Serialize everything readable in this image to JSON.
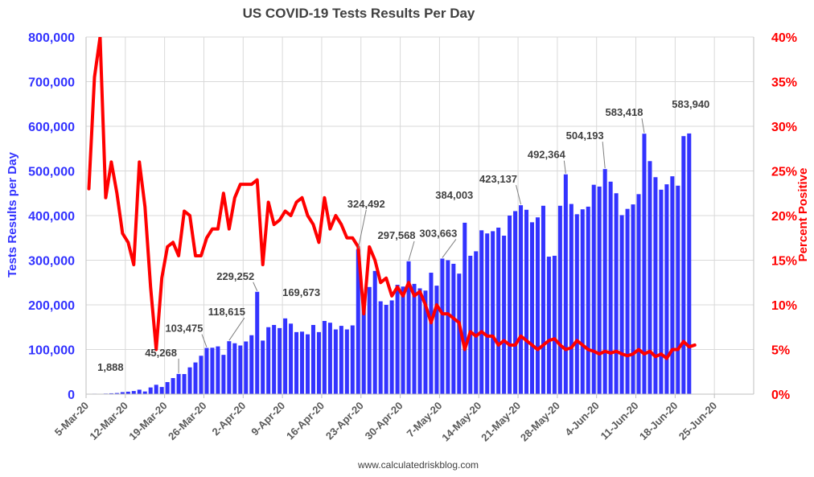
{
  "chart_data": {
    "type": "bar",
    "title": "US COVID-19 Tests Results Per Day",
    "source": "www.calculatedriskblog.com",
    "ylabel_left": "Tests Results per Day",
    "ylabel_right": "Percent Positive",
    "ylim_left": [
      0,
      800000
    ],
    "ylim_right": [
      0,
      40
    ],
    "yticks_left": [
      "0",
      "100,000",
      "200,000",
      "300,000",
      "400,000",
      "500,000",
      "600,000",
      "700,000",
      "800,000"
    ],
    "yticks_right": [
      "0%",
      "5%",
      "10%",
      "15%",
      "20%",
      "25%",
      "30%",
      "35%",
      "40%"
    ],
    "x_start_date": "2020-03-05",
    "xticks": [
      "5-Mar-20",
      "12-Mar-20",
      "19-Mar-20",
      "26-Mar-20",
      "2-Apr-20",
      "9-Apr-20",
      "16-Apr-20",
      "23-Apr-20",
      "30-Apr-20",
      "7-May-20",
      "14-May-20",
      "21-May-20",
      "28-May-20",
      "4-Jun-20",
      "11-Jun-20",
      "18-Jun-20",
      "25-Jun-20"
    ],
    "grid": true,
    "colors": {
      "bars": "#3333ff",
      "line": "#ff0000",
      "left_axis": "#3333ff",
      "right_axis": "#ff0000"
    },
    "series": [
      {
        "name": "Tests Results per Day",
        "type": "bar",
        "axis": "left",
        "values": [
          600,
          1000,
          900,
          1300,
          1888,
          2500,
          4500,
          5500,
          7000,
          10000,
          6000,
          15000,
          21000,
          16000,
          27000,
          36000,
          45268,
          45000,
          60000,
          71000,
          86000,
          103475,
          104000,
          107000,
          88000,
          118615,
          114000,
          109000,
          118000,
          132000,
          229252,
          120000,
          150000,
          155000,
          148000,
          169673,
          158000,
          139000,
          140000,
          134000,
          155000,
          139000,
          164000,
          160000,
          145000,
          153000,
          145000,
          154000,
          324492,
          195000,
          240000,
          276000,
          208000,
          200000,
          210000,
          245000,
          241000,
          297568,
          247000,
          237000,
          232000,
          272000,
          243000,
          303663,
          300000,
          292000,
          270000,
          384003,
          310000,
          320000,
          367000,
          360000,
          365000,
          373000,
          355000,
          400000,
          410000,
          423137,
          413000,
          385000,
          396000,
          422000,
          308000,
          310000,
          422000,
          492364,
          426000,
          403000,
          414000,
          420000,
          469000,
          465000,
          504193,
          476000,
          450000,
          401000,
          415000,
          425000,
          448000,
          583418,
          522000,
          486000,
          458000,
          470000,
          488000,
          467000,
          578000,
          583940
        ]
      },
      {
        "name": "Percent Positive",
        "type": "line",
        "axis": "right",
        "values": [
          23,
          35.5,
          40,
          22,
          26,
          22.5,
          18,
          17,
          14.5,
          26,
          21,
          12,
          5,
          13,
          16.5,
          17,
          15.5,
          20.5,
          20,
          15.5,
          15.5,
          17.5,
          18.5,
          18.5,
          22.5,
          18.5,
          22,
          23.5,
          23.5,
          23.5,
          24,
          14.5,
          21.5,
          19,
          19.5,
          20.5,
          20,
          21.5,
          22,
          20,
          19,
          17,
          22,
          18.5,
          20,
          19,
          17.5,
          17.5,
          16.5,
          9,
          16.5,
          15,
          12.5,
          13,
          11,
          12,
          11,
          12.5,
          11,
          11.5,
          10,
          8,
          10,
          9,
          9,
          8.5,
          8,
          5,
          7,
          6.5,
          7,
          6.5,
          6.5,
          5.5,
          6,
          5.5,
          5.5,
          6.5,
          6,
          5.5,
          5,
          5.5,
          6,
          6.2,
          5.5,
          5,
          5.2,
          6,
          5.5,
          5,
          4.8,
          4.5,
          4.8,
          4.6,
          4.8,
          4.5,
          4.3,
          4.5,
          5,
          4.5,
          4.8,
          4.2,
          4.5,
          4,
          5,
          5,
          5.9,
          5.3,
          5.5
        ]
      }
    ],
    "annotations": [
      {
        "index": 4,
        "text": "1,888",
        "dx": -1,
        "dy": -28,
        "anchor": "middle",
        "leader": false
      },
      {
        "index": 16,
        "text": "45,268",
        "dx": -22,
        "dy": -22,
        "anchor": "middle",
        "leader": true
      },
      {
        "index": 21,
        "text": "103,475",
        "dx": -28,
        "dy": -20,
        "anchor": "middle",
        "leader": true
      },
      {
        "index": 25,
        "text": "118,615",
        "dx": -3,
        "dy": -32,
        "anchor": "middle",
        "leader": true
      },
      {
        "index": 30,
        "text": "229,252",
        "dx": -27,
        "dy": -15,
        "anchor": "middle",
        "leader": true
      },
      {
        "index": 35,
        "text": "169,673",
        "dx": 20,
        "dy": -28,
        "anchor": "middle",
        "leader": false
      },
      {
        "index": 48,
        "text": "324,492",
        "dx": 10,
        "dy": -52,
        "anchor": "middle",
        "leader": true
      },
      {
        "index": 57,
        "text": "297,568",
        "dx": -15,
        "dy": -28,
        "anchor": "middle",
        "leader": true
      },
      {
        "index": 63,
        "text": "303,663",
        "dx": -5,
        "dy": -27,
        "anchor": "middle",
        "leader": true
      },
      {
        "index": 67,
        "text": "384,003",
        "dx": -13,
        "dy": -30,
        "anchor": "middle",
        "leader": false
      },
      {
        "index": 77,
        "text": "423,137",
        "dx": -28,
        "dy": -28,
        "anchor": "middle",
        "leader": true
      },
      {
        "index": 85,
        "text": "492,364",
        "dx": -24,
        "dy": -20,
        "anchor": "middle",
        "leader": true
      },
      {
        "index": 92,
        "text": "504,193",
        "dx": -25,
        "dy": -37,
        "anchor": "middle",
        "leader": true
      },
      {
        "index": 99,
        "text": "583,418",
        "dx": -25,
        "dy": -22,
        "anchor": "middle",
        "leader": true
      },
      {
        "index": 107,
        "text": "583,940",
        "dx": 2,
        "dy": -32,
        "anchor": "middle",
        "leader": false
      }
    ]
  }
}
